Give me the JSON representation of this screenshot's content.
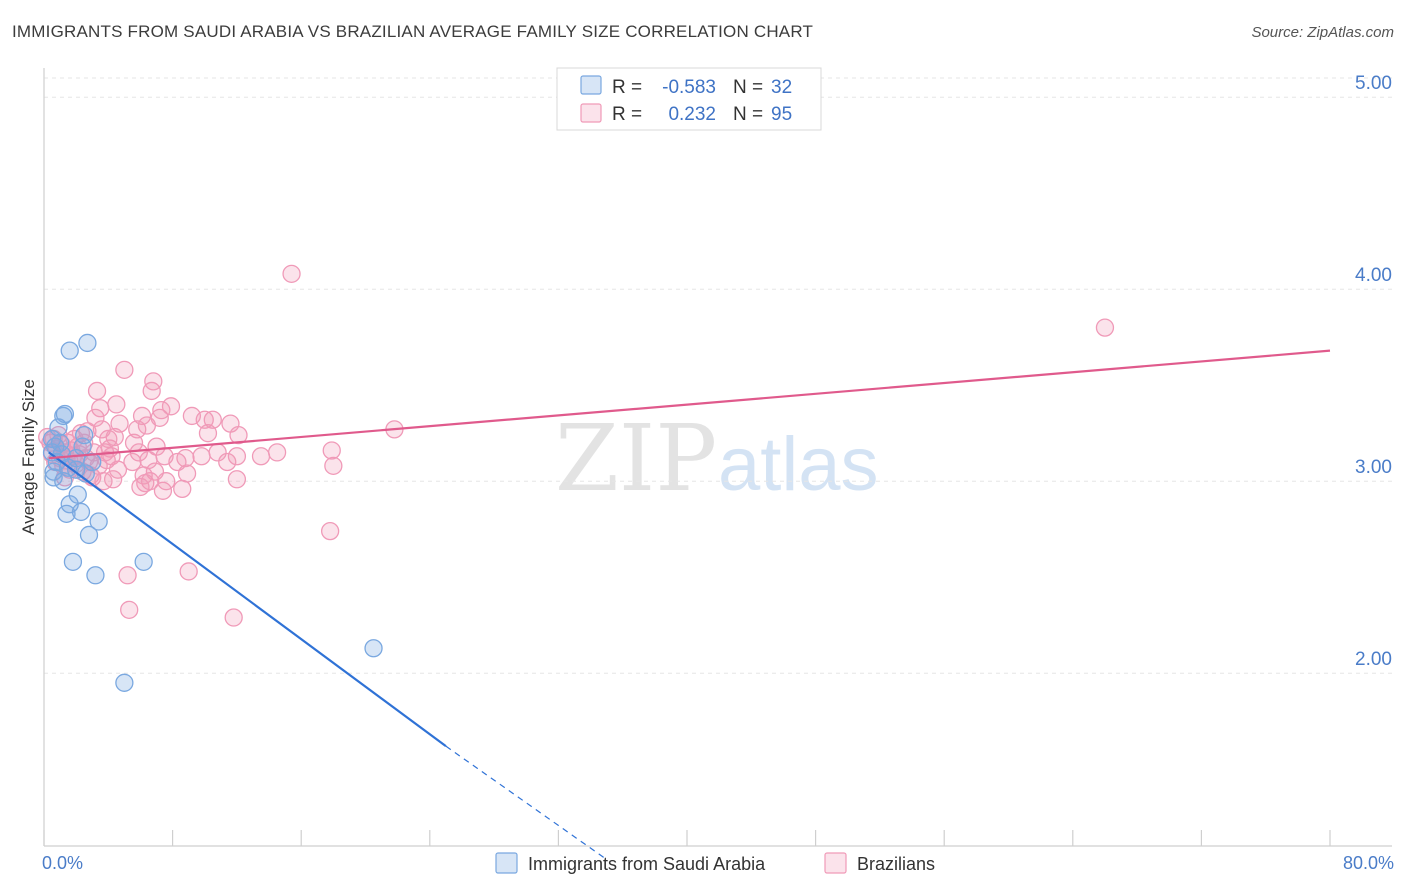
{
  "header": {
    "title": "IMMIGRANTS FROM SAUDI ARABIA VS BRAZILIAN AVERAGE FAMILY SIZE CORRELATION CHART",
    "source": "Source: ZipAtlas.com"
  },
  "watermark": {
    "zip": "ZIP",
    "atlas": "atlas"
  },
  "legend": {
    "rows": [
      {
        "r_label": "R =",
        "r_value": "-0.583",
        "n_label": "N =",
        "n_value": "32",
        "color": "#7aa8e0"
      },
      {
        "r_label": "R =",
        "r_value": "0.232",
        "n_label": "N =",
        "n_value": "95",
        "color": "#f09ab8"
      }
    ]
  },
  "bottom_legend": {
    "items": [
      {
        "label": "Immigrants from Saudi Arabia",
        "color": "#7aa8e0"
      },
      {
        "label": "Brazilians",
        "color": "#f09ab8"
      }
    ]
  },
  "chart_data": {
    "type": "scatter",
    "title": "IMMIGRANTS FROM SAUDI ARABIA VS BRAZILIAN AVERAGE FAMILY SIZE CORRELATION CHART",
    "xlabel": "",
    "ylabel": "Average Family Size",
    "xlim": [
      0,
      80
    ],
    "ylim": [
      1.1,
      5.1
    ],
    "x_tick_labels": [
      "0.0%",
      "80.0%"
    ],
    "y_ticks": [
      2.0,
      3.0,
      4.0,
      5.0
    ],
    "y_tick_labels": [
      "2.00",
      "3.00",
      "4.00",
      "5.00"
    ],
    "grid": true,
    "series": [
      {
        "name": "Immigrants from Saudi Arabia",
        "color": "#7aa8e0",
        "line_color": "#2f72d6",
        "trend": {
          "x0": 0.3,
          "y0": 3.15,
          "x1": 25.0,
          "y1": 1.62,
          "dash_to_x": 35.0,
          "dash_to_y": 1.03
        },
        "points": [
          [
            0.5,
            3.22
          ],
          [
            0.5,
            3.15
          ],
          [
            0.6,
            3.05
          ],
          [
            0.7,
            3.18
          ],
          [
            0.8,
            3.1
          ],
          [
            1.0,
            3.2
          ],
          [
            1.1,
            3.14
          ],
          [
            1.2,
            3.0
          ],
          [
            1.3,
            3.35
          ],
          [
            1.4,
            2.83
          ],
          [
            1.6,
            3.68
          ],
          [
            1.6,
            2.88
          ],
          [
            1.8,
            2.58
          ],
          [
            2.0,
            3.12
          ],
          [
            2.1,
            2.93
          ],
          [
            2.3,
            2.84
          ],
          [
            2.4,
            3.18
          ],
          [
            2.5,
            3.24
          ],
          [
            2.7,
            3.72
          ],
          [
            2.8,
            2.72
          ],
          [
            3.0,
            3.1
          ],
          [
            3.2,
            2.51
          ],
          [
            3.4,
            2.79
          ],
          [
            5.0,
            1.95
          ],
          [
            6.2,
            2.58
          ],
          [
            20.5,
            2.13
          ],
          [
            0.9,
            3.28
          ],
          [
            1.2,
            3.34
          ],
          [
            1.5,
            3.07
          ],
          [
            2.0,
            3.06
          ],
          [
            0.6,
            3.02
          ],
          [
            2.6,
            3.04
          ]
        ]
      },
      {
        "name": "Brazilians",
        "color": "#f09ab8",
        "line_color": "#e05a8c",
        "trend": {
          "x0": 0.3,
          "y0": 3.12,
          "x1": 80.0,
          "y1": 3.68
        },
        "points": [
          [
            0.4,
            3.2
          ],
          [
            0.5,
            3.14
          ],
          [
            0.6,
            3.22
          ],
          [
            0.7,
            3.1
          ],
          [
            0.8,
            3.17
          ],
          [
            0.9,
            3.24
          ],
          [
            1.0,
            3.12
          ],
          [
            1.1,
            3.19
          ],
          [
            1.2,
            3.08
          ],
          [
            1.3,
            3.15
          ],
          [
            1.4,
            3.11
          ],
          [
            1.5,
            3.2
          ],
          [
            1.6,
            3.06
          ],
          [
            1.7,
            3.16
          ],
          [
            1.8,
            3.13
          ],
          [
            1.9,
            3.22
          ],
          [
            2.0,
            3.09
          ],
          [
            2.1,
            3.18
          ],
          [
            2.2,
            3.14
          ],
          [
            2.3,
            3.25
          ],
          [
            2.4,
            3.05
          ],
          [
            2.5,
            3.2
          ],
          [
            2.6,
            3.12
          ],
          [
            2.7,
            3.26
          ],
          [
            2.8,
            3.1
          ],
          [
            3.0,
            3.02
          ],
          [
            3.1,
            3.15
          ],
          [
            3.2,
            3.33
          ],
          [
            3.3,
            3.47
          ],
          [
            3.4,
            3.08
          ],
          [
            3.5,
            3.38
          ],
          [
            3.6,
            3.27
          ],
          [
            3.7,
            3.0
          ],
          [
            3.8,
            3.15
          ],
          [
            3.9,
            3.11
          ],
          [
            4.0,
            3.22
          ],
          [
            4.1,
            3.17
          ],
          [
            4.2,
            3.13
          ],
          [
            4.3,
            3.01
          ],
          [
            4.5,
            3.4
          ],
          [
            4.6,
            3.06
          ],
          [
            4.7,
            3.3
          ],
          [
            5.0,
            3.58
          ],
          [
            5.2,
            2.51
          ],
          [
            5.3,
            2.33
          ],
          [
            5.5,
            3.1
          ],
          [
            5.6,
            3.2
          ],
          [
            5.8,
            3.27
          ],
          [
            5.9,
            3.15
          ],
          [
            6.0,
            2.97
          ],
          [
            6.1,
            3.34
          ],
          [
            6.2,
            3.03
          ],
          [
            6.3,
            2.99
          ],
          [
            6.4,
            3.29
          ],
          [
            6.6,
            3.0
          ],
          [
            6.7,
            3.47
          ],
          [
            6.8,
            3.52
          ],
          [
            6.9,
            3.05
          ],
          [
            7.0,
            3.18
          ],
          [
            7.2,
            3.33
          ],
          [
            7.3,
            3.37
          ],
          [
            7.4,
            2.95
          ],
          [
            7.5,
            3.13
          ],
          [
            7.6,
            3.0
          ],
          [
            7.9,
            3.39
          ],
          [
            8.6,
            2.96
          ],
          [
            8.8,
            3.12
          ],
          [
            8.9,
            3.04
          ],
          [
            9.0,
            2.53
          ],
          [
            9.2,
            3.34
          ],
          [
            9.8,
            3.13
          ],
          [
            10.0,
            3.32
          ],
          [
            10.2,
            3.25
          ],
          [
            10.5,
            3.32
          ],
          [
            10.8,
            3.15
          ],
          [
            11.4,
            3.1
          ],
          [
            11.6,
            3.3
          ],
          [
            11.8,
            2.29
          ],
          [
            12.0,
            3.13
          ],
          [
            12.1,
            3.24
          ],
          [
            12.0,
            3.01
          ],
          [
            13.5,
            3.13
          ],
          [
            14.5,
            3.15
          ],
          [
            15.4,
            4.08
          ],
          [
            17.8,
            2.74
          ],
          [
            17.9,
            3.16
          ],
          [
            18.0,
            3.08
          ],
          [
            21.8,
            3.27
          ],
          [
            2.9,
            3.03
          ],
          [
            4.4,
            3.23
          ],
          [
            6.5,
            3.11
          ],
          [
            8.3,
            3.1
          ],
          [
            1.3,
            3.02
          ],
          [
            66.0,
            3.8
          ],
          [
            0.2,
            3.23
          ]
        ]
      }
    ]
  }
}
